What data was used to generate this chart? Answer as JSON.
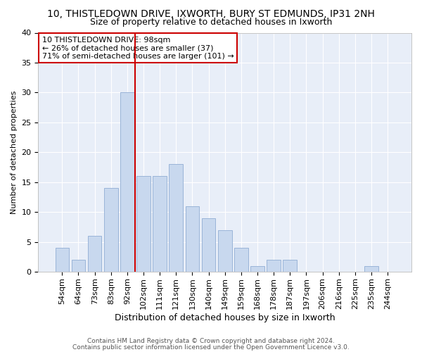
{
  "title": "10, THISTLEDOWN DRIVE, IXWORTH, BURY ST EDMUNDS, IP31 2NH",
  "subtitle": "Size of property relative to detached houses in Ixworth",
  "xlabel": "Distribution of detached houses by size in Ixworth",
  "ylabel": "Number of detached properties",
  "bar_labels": [
    "54sqm",
    "64sqm",
    "73sqm",
    "83sqm",
    "92sqm",
    "102sqm",
    "111sqm",
    "121sqm",
    "130sqm",
    "140sqm",
    "149sqm",
    "159sqm",
    "168sqm",
    "178sqm",
    "187sqm",
    "197sqm",
    "206sqm",
    "216sqm",
    "225sqm",
    "235sqm",
    "244sqm"
  ],
  "bar_values": [
    4,
    2,
    6,
    14,
    30,
    16,
    16,
    18,
    11,
    9,
    7,
    4,
    1,
    2,
    2,
    0,
    0,
    0,
    0,
    1,
    0
  ],
  "bar_color": "#c8d8ee",
  "bar_edge_color": "#9ab4d8",
  "vline_x": 4.5,
  "vline_color": "#cc0000",
  "ylim": [
    0,
    40
  ],
  "yticks": [
    0,
    5,
    10,
    15,
    20,
    25,
    30,
    35,
    40
  ],
  "annotation_title": "10 THISTLEDOWN DRIVE: 98sqm",
  "annotation_line1": "← 26% of detached houses are smaller (37)",
  "annotation_line2": "71% of semi-detached houses are larger (101) →",
  "annotation_box_color": "#ffffff",
  "annotation_box_edge": "#cc0000",
  "footer1": "Contains HM Land Registry data © Crown copyright and database right 2024.",
  "footer2": "Contains public sector information licensed under the Open Government Licence v3.0.",
  "bg_color": "#ffffff",
  "plot_bg_color": "#e8eef8",
  "grid_color": "#ffffff",
  "title_fontsize": 10,
  "subtitle_fontsize": 9,
  "xlabel_fontsize": 9,
  "ylabel_fontsize": 8,
  "tick_fontsize": 8,
  "annotation_fontsize": 8,
  "footer_fontsize": 6.5
}
